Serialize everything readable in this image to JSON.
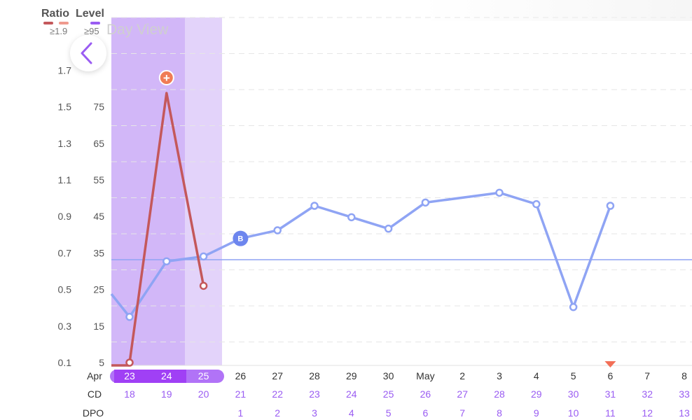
{
  "header": {
    "ratio_label": "Ratio",
    "level_label": "Level",
    "ratio_threshold": "≥1.9",
    "level_threshold": "≥95",
    "title_faded": "Day View"
  },
  "colors": {
    "ratio_line": "#c4585b",
    "ratio_swatch_2": "#ef9a8e",
    "level_line": "#8fa4f4",
    "level_swatch": "#9a5cf2",
    "fertile_dark": "#d2b7f8",
    "fertile_light": "#e3d3fa",
    "date_pill": "#b173f7",
    "purple_text": "#9a5cf2",
    "peak_marker": "#f07c55",
    "baseline_marker": "#6d86ee",
    "period_marker": "#f26f57"
  },
  "chart_data": {
    "type": "line",
    "x_dates": [
      "23",
      "24",
      "25",
      "26",
      "27",
      "28",
      "29",
      "30",
      "May",
      "2",
      "3",
      "4",
      "5",
      "6",
      "7",
      "8"
    ],
    "month_label": "Apr",
    "cycle_days": [
      "18",
      "19",
      "20",
      "21",
      "22",
      "23",
      "24",
      "25",
      "26",
      "27",
      "28",
      "29",
      "30",
      "31",
      "32",
      "33"
    ],
    "dpo_label": "DPO",
    "cd_label": "CD",
    "dpo": [
      "",
      "",
      "",
      "1",
      "2",
      "3",
      "4",
      "5",
      "6",
      "7",
      "8",
      "9",
      "10",
      "11",
      "12",
      "13"
    ],
    "y_left_ticks": [
      "0.1",
      "0.3",
      "0.5",
      "0.7",
      "0.9",
      "1.1",
      "1.3",
      "1.5",
      "1.7"
    ],
    "y_right_ticks": [
      "5",
      "15",
      "25",
      "35",
      "45",
      "55",
      "65",
      "75"
    ],
    "ylim_level": [
      5,
      95
    ],
    "highlighted_dates": [
      "23",
      "24",
      "25"
    ],
    "series": [
      {
        "name": "Ratio",
        "axis": "left",
        "x_index": [
          0,
          1,
          2
        ],
        "values": [
          0.1,
          1.75,
          0.57
        ]
      },
      {
        "name": "Level",
        "axis": "right",
        "x_index": [
          -0.5,
          0,
          1,
          2,
          3,
          4,
          5,
          6,
          7,
          8,
          10,
          11,
          12,
          13
        ],
        "values": [
          26,
          19,
          36,
          37.5,
          43,
          45.5,
          53,
          49.5,
          46,
          54,
          57,
          53.5,
          22,
          53
        ]
      }
    ],
    "baseline_level": 36.5,
    "peak_marker": {
      "series": "Ratio",
      "index": 1,
      "symbol": "+"
    },
    "baseline_start": {
      "x_index": 3,
      "symbol": "B"
    },
    "period_marker_x_index": 13,
    "grid": "dashed horizontal"
  }
}
